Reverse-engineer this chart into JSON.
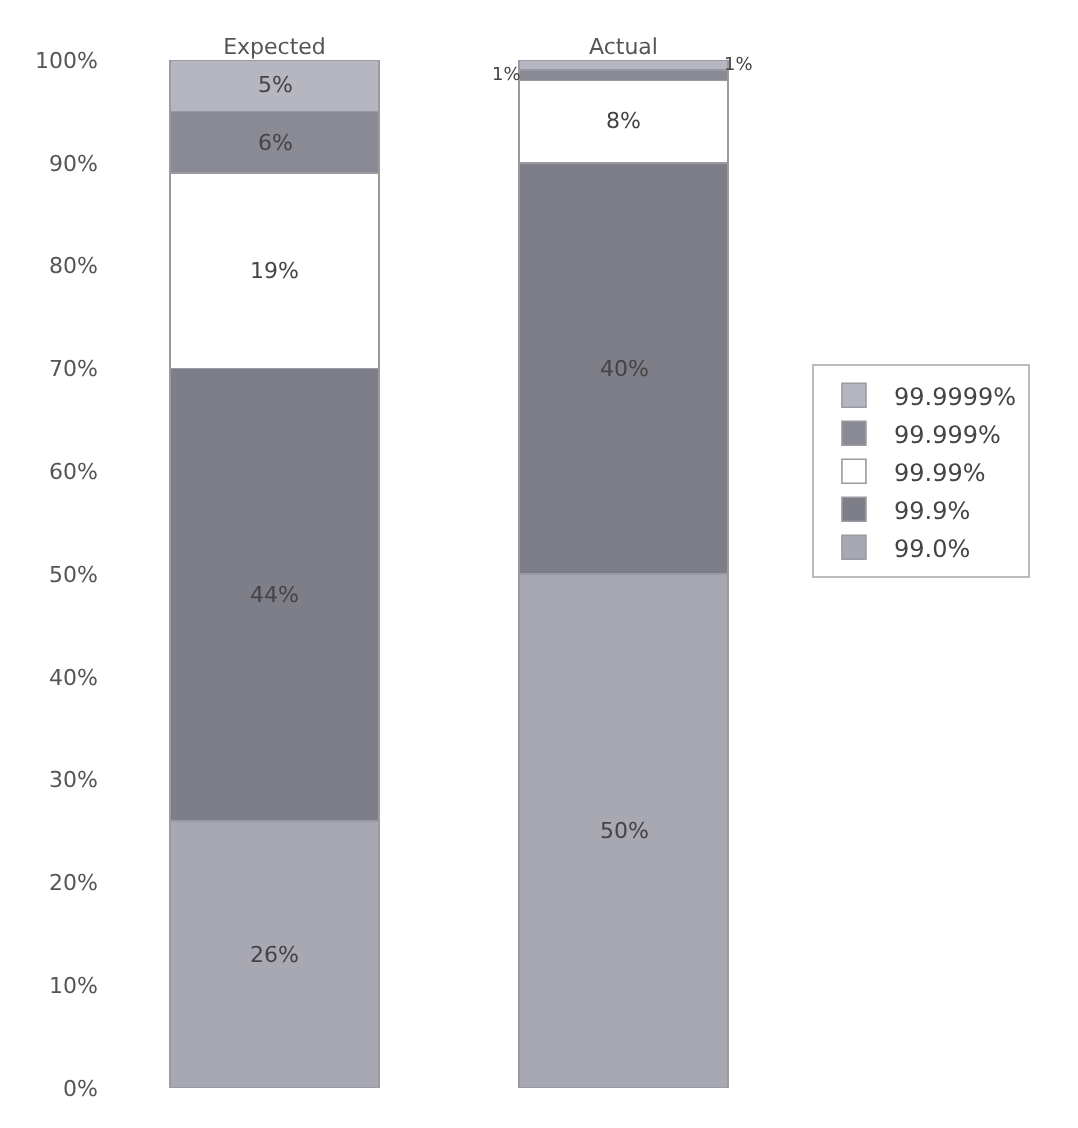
{
  "chart_data": {
    "type": "bar",
    "stacked": true,
    "categories": [
      "Expected",
      "Actual"
    ],
    "series": [
      {
        "name": "99.0%",
        "color": "#a8a8b2",
        "values": [
          26,
          50
        ],
        "value_labels": [
          "26%",
          "50%"
        ]
      },
      {
        "name": "99.9%",
        "color": "#7e7e88",
        "values": [
          44,
          40
        ],
        "value_labels": [
          "44%",
          "40%"
        ]
      },
      {
        "name": "99.99%",
        "color": "#ffffff",
        "values": [
          19,
          8
        ],
        "value_labels": [
          "19%",
          "8%"
        ]
      },
      {
        "name": "99.999%",
        "color": "#8a8a94",
        "values": [
          6,
          1
        ],
        "value_labels": [
          "6%",
          "1%"
        ]
      },
      {
        "name": "99.9999%",
        "color": "#b6b6c0",
        "values": [
          5,
          1
        ],
        "value_labels": [
          "5%",
          "1%"
        ]
      }
    ],
    "ylim": [
      0,
      100
    ],
    "yticks": [
      {
        "value": 0,
        "label": "0%"
      },
      {
        "value": 10,
        "label": "10%"
      },
      {
        "value": 20,
        "label": "20%"
      },
      {
        "value": 30,
        "label": "30%"
      },
      {
        "value": 40,
        "label": "40%"
      },
      {
        "value": 50,
        "label": "50%"
      },
      {
        "value": 60,
        "label": "60%"
      },
      {
        "value": 70,
        "label": "70%"
      },
      {
        "value": 80,
        "label": "80%"
      },
      {
        "value": 90,
        "label": "90%"
      },
      {
        "value": 100,
        "label": "100%"
      }
    ],
    "grid": false,
    "legend": "right"
  }
}
